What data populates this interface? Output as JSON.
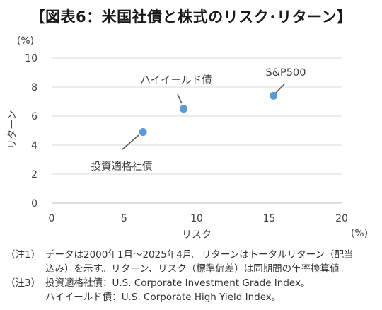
{
  "title": "【図表6：米国社債と株式のリスク･リターン】",
  "chart_data": {
    "type": "scatter",
    "title": "【図表6：米国社債と株式のリスク･リターン】",
    "xlabel": "リスク",
    "ylabel": "リターン",
    "x_unit": "(%)",
    "y_unit": "(%)",
    "xlim": [
      0,
      20
    ],
    "ylim": [
      0,
      10
    ],
    "x_ticks": [
      0,
      5,
      10,
      15,
      20
    ],
    "y_ticks": [
      0,
      2,
      4,
      6,
      8,
      10
    ],
    "grid": {
      "horizontal": true,
      "vertical": false
    },
    "point_color": "#5b9bd5",
    "points": [
      {
        "label": "投資適格社債",
        "x": 6.3,
        "y": 4.9
      },
      {
        "label": "ハイイールド債",
        "x": 9.1,
        "y": 6.5
      },
      {
        "label": "S&P500",
        "x": 15.3,
        "y": 7.4
      }
    ]
  },
  "notes": [
    {
      "tag": "（注1）",
      "text": "データは2000年1月～2025年4月。リターンはトータルリターン（配当\n込み）を示す。リターン、リスク（標準偏差）は同期間の年率換算値。"
    },
    {
      "tag": "（注3）",
      "text": "投資適格社債：U.S. Corporate Investment Grade Index。\nハイイールド債：U.S. Corporate High Yield Index。"
    }
  ]
}
